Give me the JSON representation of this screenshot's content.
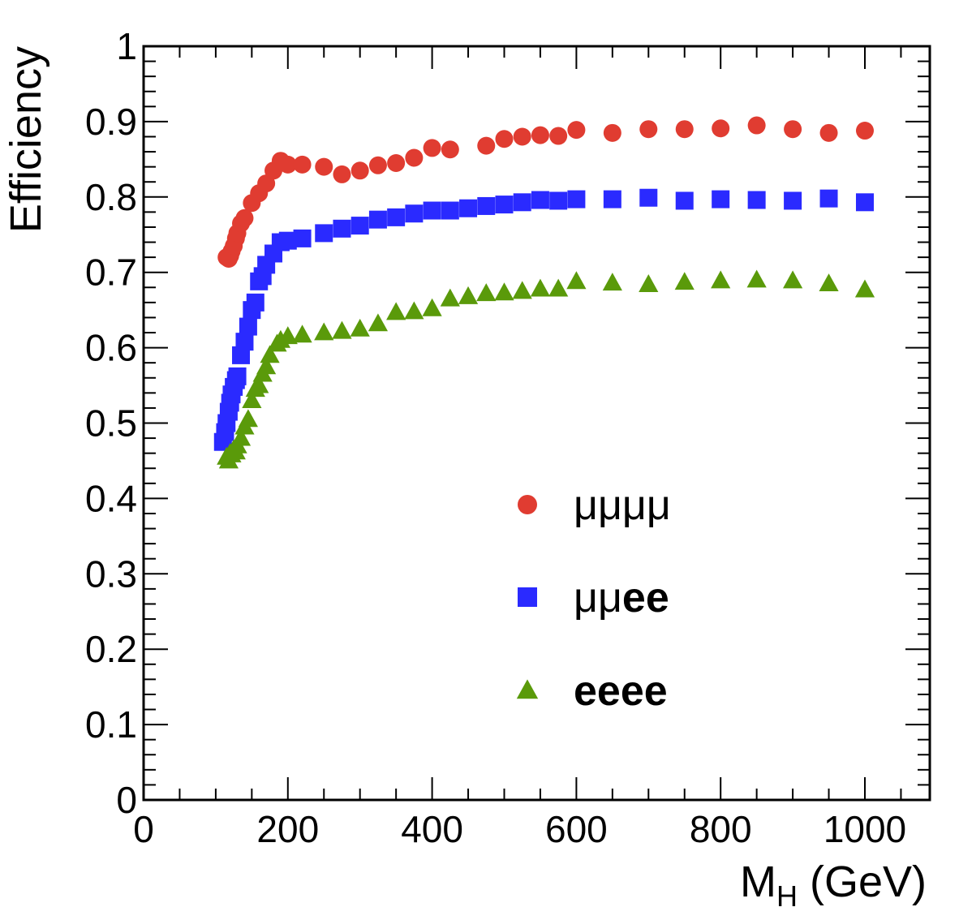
{
  "chart_data": {
    "type": "scatter",
    "title": "",
    "xlabel": "M",
    "xlabel_sub": "H",
    "xlabel_unit": " (GeV)",
    "ylabel": "Efficiency",
    "xlim": [
      0,
      1090
    ],
    "ylim": [
      0,
      1
    ],
    "x_ticks": [
      0,
      200,
      400,
      600,
      800,
      1000
    ],
    "x_tick_labels": [
      "0",
      "200",
      "400",
      "600",
      "800",
      "1000"
    ],
    "y_ticks": [
      0,
      0.1,
      0.2,
      0.3,
      0.4,
      0.5,
      0.6,
      0.7,
      0.8,
      0.9,
      1
    ],
    "y_tick_labels": [
      "0",
      "0.1",
      "0.2",
      "0.3",
      "0.4",
      "0.5",
      "0.6",
      "0.7",
      "0.8",
      "0.9",
      "1"
    ],
    "grid": false,
    "legend_position": "lower-right",
    "series": [
      {
        "name": "μμμμ",
        "legend_parts": [
          {
            "text": "μμμμ",
            "bold": false
          }
        ],
        "marker": "circle",
        "color": "#e03c31",
        "points": [
          [
            115,
            0.72
          ],
          [
            118,
            0.718
          ],
          [
            120,
            0.722
          ],
          [
            122,
            0.728
          ],
          [
            125,
            0.735
          ],
          [
            128,
            0.745
          ],
          [
            130,
            0.752
          ],
          [
            135,
            0.765
          ],
          [
            140,
            0.772
          ],
          [
            150,
            0.792
          ],
          [
            160,
            0.805
          ],
          [
            170,
            0.818
          ],
          [
            180,
            0.835
          ],
          [
            190,
            0.848
          ],
          [
            200,
            0.843
          ],
          [
            220,
            0.843
          ],
          [
            250,
            0.84
          ],
          [
            275,
            0.83
          ],
          [
            300,
            0.835
          ],
          [
            325,
            0.842
          ],
          [
            350,
            0.845
          ],
          [
            375,
            0.852
          ],
          [
            400,
            0.865
          ],
          [
            425,
            0.863
          ],
          [
            475,
            0.868
          ],
          [
            500,
            0.877
          ],
          [
            525,
            0.88
          ],
          [
            550,
            0.882
          ],
          [
            575,
            0.881
          ],
          [
            600,
            0.889
          ],
          [
            650,
            0.885
          ],
          [
            700,
            0.89
          ],
          [
            750,
            0.89
          ],
          [
            800,
            0.891
          ],
          [
            850,
            0.895
          ],
          [
            900,
            0.89
          ],
          [
            950,
            0.885
          ],
          [
            1000,
            0.888
          ]
        ]
      },
      {
        "name": "μμee",
        "legend_parts": [
          {
            "text": "μμ",
            "bold": false
          },
          {
            "text": "ee",
            "bold": true
          }
        ],
        "marker": "square",
        "color": "#2a2aff",
        "points": [
          [
            110,
            0.475
          ],
          [
            113,
            0.488
          ],
          [
            115,
            0.5
          ],
          [
            118,
            0.515
          ],
          [
            120,
            0.527
          ],
          [
            122,
            0.538
          ],
          [
            125,
            0.548
          ],
          [
            128,
            0.557
          ],
          [
            130,
            0.562
          ],
          [
            135,
            0.59
          ],
          [
            140,
            0.608
          ],
          [
            145,
            0.628
          ],
          [
            150,
            0.65
          ],
          [
            155,
            0.66
          ],
          [
            160,
            0.688
          ],
          [
            165,
            0.695
          ],
          [
            170,
            0.71
          ],
          [
            180,
            0.725
          ],
          [
            190,
            0.74
          ],
          [
            200,
            0.742
          ],
          [
            220,
            0.745
          ],
          [
            250,
            0.752
          ],
          [
            275,
            0.758
          ],
          [
            300,
            0.762
          ],
          [
            325,
            0.77
          ],
          [
            350,
            0.773
          ],
          [
            375,
            0.778
          ],
          [
            400,
            0.782
          ],
          [
            425,
            0.782
          ],
          [
            450,
            0.785
          ],
          [
            475,
            0.788
          ],
          [
            500,
            0.79
          ],
          [
            525,
            0.793
          ],
          [
            550,
            0.796
          ],
          [
            575,
            0.795
          ],
          [
            600,
            0.797
          ],
          [
            650,
            0.797
          ],
          [
            700,
            0.799
          ],
          [
            750,
            0.795
          ],
          [
            800,
            0.797
          ],
          [
            850,
            0.796
          ],
          [
            900,
            0.795
          ],
          [
            950,
            0.798
          ],
          [
            1000,
            0.793
          ]
        ]
      },
      {
        "name": "eeee",
        "legend_parts": [
          {
            "text": "eeee",
            "bold": true
          }
        ],
        "marker": "triangle",
        "color": "#5a9a0a",
        "points": [
          [
            115,
            0.455
          ],
          [
            118,
            0.45
          ],
          [
            120,
            0.46
          ],
          [
            122,
            0.458
          ],
          [
            125,
            0.465
          ],
          [
            128,
            0.462
          ],
          [
            130,
            0.47
          ],
          [
            135,
            0.48
          ],
          [
            140,
            0.495
          ],
          [
            145,
            0.505
          ],
          [
            150,
            0.53
          ],
          [
            155,
            0.545
          ],
          [
            160,
            0.55
          ],
          [
            165,
            0.565
          ],
          [
            170,
            0.575
          ],
          [
            175,
            0.59
          ],
          [
            185,
            0.605
          ],
          [
            190,
            0.61
          ],
          [
            200,
            0.615
          ],
          [
            220,
            0.617
          ],
          [
            250,
            0.62
          ],
          [
            275,
            0.622
          ],
          [
            300,
            0.625
          ],
          [
            325,
            0.632
          ],
          [
            350,
            0.647
          ],
          [
            375,
            0.648
          ],
          [
            400,
            0.652
          ],
          [
            425,
            0.665
          ],
          [
            450,
            0.668
          ],
          [
            475,
            0.672
          ],
          [
            500,
            0.673
          ],
          [
            525,
            0.675
          ],
          [
            550,
            0.678
          ],
          [
            575,
            0.678
          ],
          [
            600,
            0.688
          ],
          [
            650,
            0.686
          ],
          [
            700,
            0.684
          ],
          [
            750,
            0.687
          ],
          [
            800,
            0.689
          ],
          [
            850,
            0.69
          ],
          [
            900,
            0.689
          ],
          [
            950,
            0.685
          ],
          [
            1000,
            0.677
          ]
        ]
      }
    ]
  }
}
